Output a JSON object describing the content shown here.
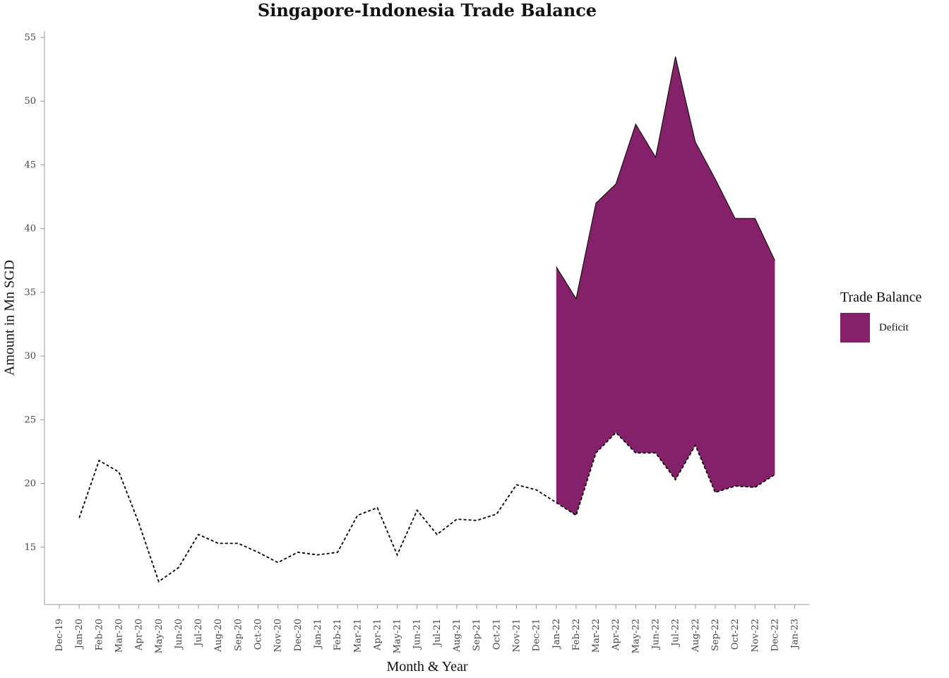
{
  "chart_data": {
    "type": "area",
    "title": "Singapore-Indonesia Trade Balance",
    "xlabel": "Month & Year",
    "ylabel": "Amount in Mn SGD",
    "x_tick_labels": [
      "Dec-19",
      "Jan-20",
      "Feb-20",
      "Mar-20",
      "Apr-20",
      "May-20",
      "Jun-20",
      "Jul-20",
      "Aug-20",
      "Sep-20",
      "Oct-20",
      "Nov-20",
      "Dec-20",
      "Jan-21",
      "Feb-21",
      "Mar-21",
      "Apr-21",
      "May-21",
      "Jun-21",
      "Jul-21",
      "Aug-21",
      "Sep-21",
      "Oct-21",
      "Nov-21",
      "Dec-21",
      "Jan-22",
      "Feb-22",
      "Mar-22",
      "Apr-22",
      "May-22",
      "Jun-22",
      "Jul-22",
      "Aug-22",
      "Sep-22",
      "Oct-22",
      "Nov-22",
      "Dec-22",
      "Jan-23"
    ],
    "y_ticks": [
      15,
      20,
      25,
      30,
      35,
      40,
      45,
      50,
      55
    ],
    "ylim": [
      10.5,
      55.5
    ],
    "grid": false,
    "legend_position": "right",
    "series": [
      {
        "style": "dashed-line",
        "x": [
          "Jan-20",
          "Feb-20",
          "Mar-20",
          "Apr-20",
          "May-20",
          "Jun-20",
          "Jul-20",
          "Aug-20",
          "Sep-20",
          "Oct-20",
          "Nov-20",
          "Dec-20",
          "Jan-21",
          "Feb-21",
          "Mar-21",
          "Apr-21",
          "May-21",
          "Jun-21",
          "Jul-21",
          "Aug-21",
          "Sep-21",
          "Oct-21",
          "Nov-21",
          "Dec-21",
          "Jan-22",
          "Feb-22",
          "Mar-22",
          "Apr-22",
          "May-22",
          "Jun-22",
          "Jul-22",
          "Aug-22",
          "Sep-22",
          "Oct-22",
          "Nov-22",
          "Dec-22"
        ],
        "values": [
          17.3,
          21.8,
          20.9,
          16.9,
          12.3,
          13.4,
          16.0,
          15.3,
          15.3,
          14.6,
          13.8,
          14.6,
          14.4,
          14.6,
          17.5,
          18.1,
          14.4,
          17.9,
          16.0,
          17.2,
          17.1,
          17.6,
          19.9,
          19.5,
          18.5,
          17.5,
          22.4,
          24.0,
          22.4,
          22.4,
          20.3,
          23.0,
          19.3,
          19.8,
          19.7,
          20.7
        ]
      },
      {
        "name": "Deficit",
        "style": "filled-band",
        "x": [
          "Jan-22",
          "Feb-22",
          "Mar-22",
          "Apr-22",
          "May-22",
          "Jun-22",
          "Jul-22",
          "Aug-22",
          "Sep-22",
          "Oct-22",
          "Nov-22",
          "Dec-22"
        ],
        "lower": [
          18.5,
          17.5,
          22.4,
          24.0,
          22.4,
          22.4,
          20.3,
          23.0,
          19.3,
          19.8,
          19.7,
          20.7
        ],
        "upper": [
          37.0,
          34.5,
          42.0,
          43.5,
          48.2,
          45.6,
          53.5,
          46.8,
          43.9,
          40.8,
          40.8,
          37.5
        ]
      }
    ],
    "legend": {
      "title": "Trade Balance",
      "items": [
        {
          "label": "Deficit",
          "color": "#85206A"
        }
      ]
    },
    "colors": {
      "deficit": "#85206A",
      "line": "#000000",
      "axis": "#999999",
      "tick_text": "#444444"
    }
  }
}
